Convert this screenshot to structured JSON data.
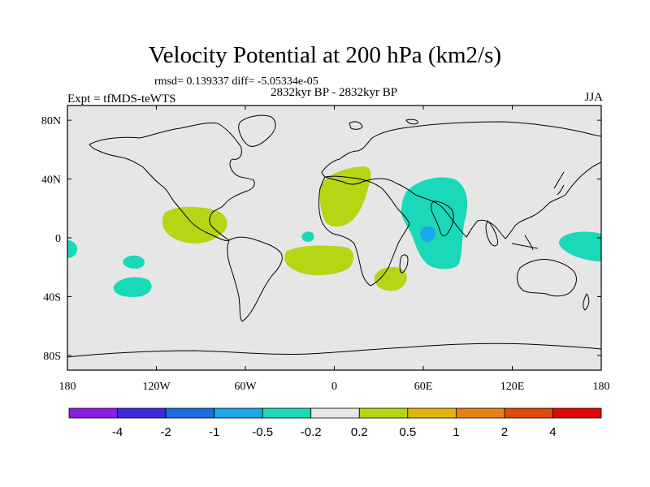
{
  "figure": {
    "title": "Velocity Potential at 200 hPa (km2/s)",
    "stats": "rmsd= 0.139337 diff= -5.05334e-05",
    "subtitle": "2832kyr BP - 2832kyr BP",
    "experiment": "Expt = tfMDS-teWTS",
    "season": "JJA"
  },
  "chart_data": {
    "type": "heatmap",
    "projection": "cylindrical-equidistant",
    "lon_range": [
      -180,
      180
    ],
    "lat_range": [
      -90,
      90
    ],
    "x_ticks": [
      "180",
      "120W",
      "60W",
      "0",
      "60E",
      "120E",
      "180"
    ],
    "y_ticks": [
      "80N",
      "40N",
      "0",
      "40S",
      "80S"
    ],
    "colorbar": {
      "boundaries": [
        "-4",
        "-2",
        "-1",
        "-0.5",
        "-0.2",
        "0.2",
        "0.5",
        "1",
        "2",
        "4"
      ],
      "colors": [
        "#8c1ee0",
        "#3b2ad9",
        "#1a6ee0",
        "#1aa8e6",
        "#1ad9b8",
        "#e6e6e6",
        "#b4d614",
        "#e0b40a",
        "#e68214",
        "#e04a0a",
        "#e00a0a"
      ]
    },
    "anomalies": [
      {
        "region": "central-america",
        "lon": -100,
        "lat": 15,
        "class": "0.2 to 0.5"
      },
      {
        "region": "north-africa",
        "lon": 20,
        "lat": 30,
        "class": "0.2 to 0.5"
      },
      {
        "region": "south-atlantic",
        "lon": -15,
        "lat": -20,
        "class": "0.2 to 0.5"
      },
      {
        "region": "southeast-africa",
        "lon": 40,
        "lat": -38,
        "class": "0.2 to 0.5"
      },
      {
        "region": "arabian-sea",
        "lon": 70,
        "lat": 15,
        "class": "-0.5 to -0.2"
      },
      {
        "region": "arabian-sea-core",
        "lon": 62,
        "lat": 5,
        "class": "-1 to -0.5"
      },
      {
        "region": "western-pacific",
        "lon": 165,
        "lat": -5,
        "class": "-0.5 to -0.2"
      },
      {
        "region": "east-pacific-edge",
        "lon": -178,
        "lat": -5,
        "class": "-0.5 to -0.2"
      },
      {
        "region": "south-pacific",
        "lon": -150,
        "lat": -38,
        "class": "-0.5 to -0.2"
      },
      {
        "region": "south-pacific-small",
        "lon": -145,
        "lat": -17,
        "class": "-0.5 to -0.2"
      },
      {
        "region": "equatorial-atlantic",
        "lon": -15,
        "lat": 3,
        "class": "-0.5 to -0.2"
      }
    ]
  }
}
